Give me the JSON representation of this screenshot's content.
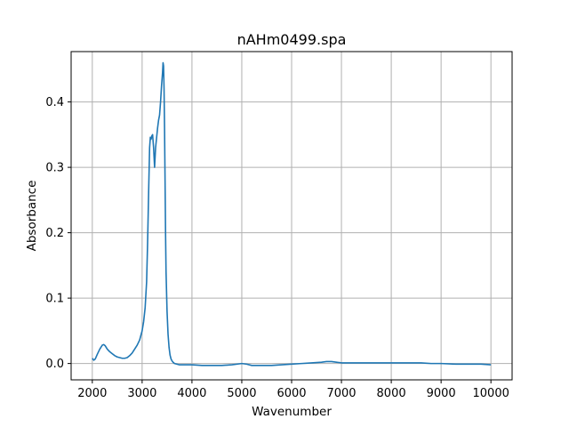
{
  "chart_data": {
    "type": "line",
    "title": "nAHm0499.spa",
    "xlabel": "Wavenumber",
    "ylabel": "Absorbance",
    "xlim": [
      1575,
      10425
    ],
    "ylim": [
      -0.025,
      0.477
    ],
    "grid": true,
    "xticks": [
      2000,
      3000,
      4000,
      5000,
      6000,
      7000,
      8000,
      9000,
      10000
    ],
    "xtick_labels": [
      "2000",
      "3000",
      "4000",
      "5000",
      "6000",
      "7000",
      "8000",
      "9000",
      "10000"
    ],
    "yticks": [
      0.0,
      0.1,
      0.2,
      0.3,
      0.4
    ],
    "ytick_labels": [
      "0.0",
      "0.1",
      "0.2",
      "0.3",
      "0.4"
    ],
    "series": [
      {
        "color": "#1f77b4",
        "x": [
          2000,
          2030,
          2060,
          2100,
          2150,
          2200,
          2230,
          2260,
          2300,
          2350,
          2400,
          2450,
          2500,
          2550,
          2600,
          2650,
          2700,
          2750,
          2800,
          2850,
          2900,
          2950,
          3000,
          3030,
          3060,
          3090,
          3110,
          3130,
          3150,
          3165,
          3180,
          3195,
          3210,
          3230,
          3250,
          3270,
          3290,
          3310,
          3330,
          3350,
          3370,
          3390,
          3410,
          3420,
          3430,
          3440,
          3450,
          3460,
          3470,
          3480,
          3500,
          3520,
          3540,
          3560,
          3580,
          3600,
          3620,
          3650,
          3700,
          3750,
          3800,
          3900,
          4000,
          4200,
          4400,
          4600,
          4800,
          4900,
          5000,
          5100,
          5200,
          5400,
          5600,
          5800,
          6000,
          6200,
          6400,
          6600,
          6700,
          6800,
          6900,
          7000,
          7200,
          7500,
          7800,
          8000,
          8300,
          8600,
          8800,
          9000,
          9300,
          9600,
          9800,
          10000
        ],
        "y": [
          0.008,
          0.005,
          0.007,
          0.014,
          0.022,
          0.028,
          0.029,
          0.027,
          0.022,
          0.018,
          0.015,
          0.012,
          0.01,
          0.009,
          0.008,
          0.008,
          0.009,
          0.012,
          0.016,
          0.022,
          0.028,
          0.036,
          0.05,
          0.064,
          0.085,
          0.125,
          0.185,
          0.26,
          0.33,
          0.346,
          0.343,
          0.348,
          0.35,
          0.33,
          0.3,
          0.33,
          0.345,
          0.36,
          0.372,
          0.38,
          0.4,
          0.425,
          0.445,
          0.46,
          0.455,
          0.42,
          0.36,
          0.28,
          0.2,
          0.14,
          0.08,
          0.045,
          0.025,
          0.013,
          0.007,
          0.004,
          0.002,
          0.0,
          -0.001,
          -0.002,
          -0.002,
          -0.002,
          -0.002,
          -0.003,
          -0.003,
          -0.003,
          -0.002,
          -0.001,
          0.0,
          -0.001,
          -0.003,
          -0.003,
          -0.003,
          -0.002,
          -0.001,
          0.0,
          0.001,
          0.002,
          0.003,
          0.003,
          0.002,
          0.001,
          0.001,
          0.001,
          0.001,
          0.001,
          0.001,
          0.001,
          0.0,
          0.0,
          -0.001,
          -0.001,
          -0.001,
          -0.002
        ]
      }
    ]
  }
}
